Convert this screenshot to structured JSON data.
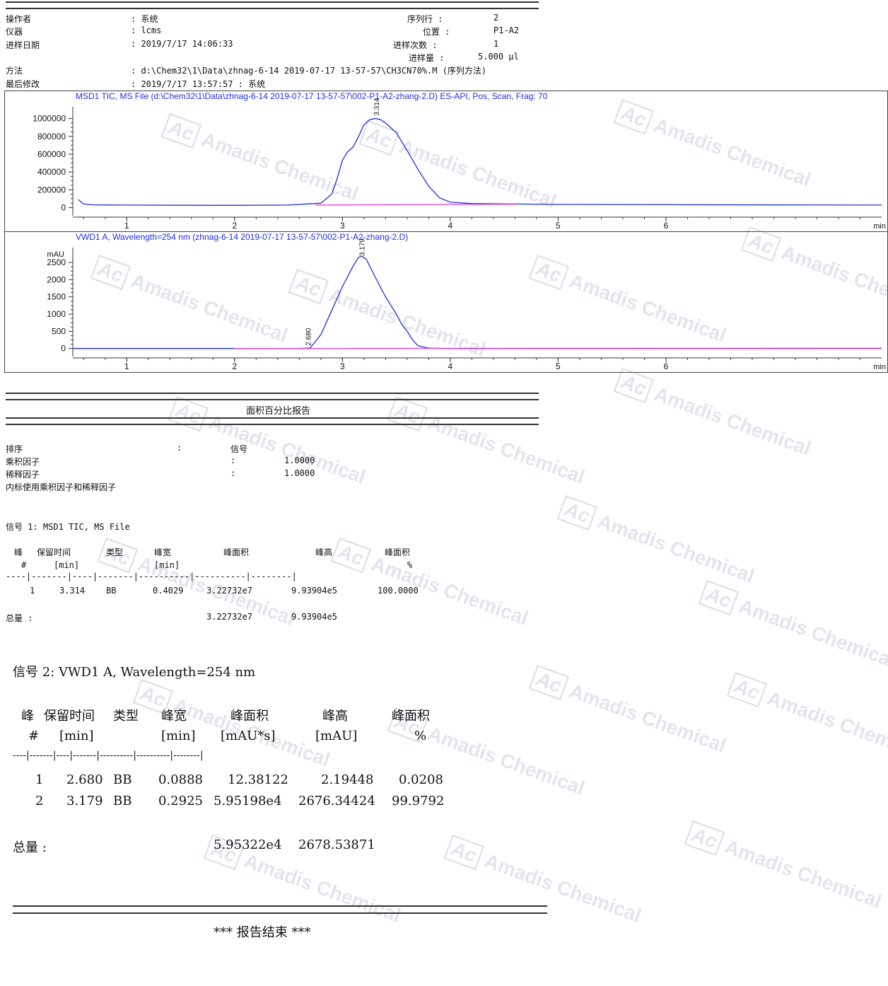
{
  "header": {
    "operator_label": "操作者",
    "operator_value": ": 系统",
    "instrument_label": "仪器",
    "instrument_value": ": lcms",
    "inj_date_label": "进样日期",
    "inj_date_value": ": 2019/7/17 14:06:33",
    "seq_line_label": "序列行 :",
    "seq_line_value": "2",
    "position_label": "位置 :",
    "position_value": "P1-A2",
    "inj_count_label": "进样次数 :",
    "inj_count_value": "1",
    "inj_vol_label": "进样量 :",
    "inj_vol_value": "5.000 µl",
    "method_label": "方法",
    "method_value": ": d:\\Chem32\\1\\Data\\zhnag-6-14 2019-07-17 13-57-57\\CH3CN70%.M (序列方法)",
    "last_mod_label": "最后修改",
    "last_mod_value": ": 2019/7/17 13:57:57 : 系统"
  },
  "chart_data": [
    {
      "type": "line",
      "title": "MSD1 TIC, MS File (d:\\Chem32\\1\\Data\\zhnag-6-14 2019-07-17 13-57-57\\002-P1-A2-zhang-2.D) ES-API, Pos, Scan, Frag: 70",
      "xlabel": "min",
      "ylabel": "",
      "xlim": [
        0.5,
        8.0
      ],
      "ylim": [
        -60000,
        1100000
      ],
      "xticks": [
        "1",
        "2",
        "3",
        "4",
        "5",
        "6"
      ],
      "yticks": [
        "0",
        "200000",
        "400000",
        "600000",
        "800000",
        "1000000"
      ],
      "ytick_values": [
        0,
        200000,
        400000,
        600000,
        800000,
        1000000
      ],
      "peak_labels": [
        {
          "text": "3.314",
          "x": 3.314,
          "y": 1000000
        }
      ],
      "series": [
        {
          "color": "#1f2fe0",
          "x": [
            0.55,
            0.6,
            0.7,
            1.0,
            1.5,
            2.0,
            2.5,
            2.8,
            2.9,
            2.95,
            3.0,
            3.05,
            3.1,
            3.15,
            3.2,
            3.25,
            3.3,
            3.35,
            3.4,
            3.5,
            3.6,
            3.7,
            3.8,
            3.9,
            4.0,
            4.2,
            4.6,
            5.0,
            6.0,
            7.0,
            8.0
          ],
          "y": [
            90000,
            40000,
            30000,
            28000,
            26000,
            25000,
            28000,
            50000,
            150000,
            320000,
            530000,
            630000,
            680000,
            800000,
            930000,
            985000,
            1000000,
            990000,
            950000,
            840000,
            640000,
            430000,
            240000,
            110000,
            60000,
            45000,
            40000,
            35000,
            32000,
            30000,
            28000
          ]
        },
        {
          "color": "#e03ad8",
          "x": [
            2.75,
            3.0,
            3.5,
            4.0,
            4.6
          ],
          "y": [
            28000,
            30000,
            32000,
            35000,
            38000
          ]
        }
      ]
    },
    {
      "type": "line",
      "title": "VWD1 A, Wavelength=254 nm (zhnag-6-14 2019-07-17 13-57-57\\002-P1-A2-zhang-2.D)",
      "xlabel": "min",
      "ylabel": "mAU",
      "xlim": [
        0.5,
        8.0
      ],
      "ylim": [
        -150,
        2850
      ],
      "xticks": [
        "1",
        "2",
        "3",
        "4",
        "5",
        "6"
      ],
      "yticks": [
        "0",
        "500",
        "1000",
        "1500",
        "2000",
        "2500"
      ],
      "ytick_values": [
        0,
        500,
        1000,
        1500,
        2000,
        2500
      ],
      "peak_labels": [
        {
          "text": "2.680",
          "x": 2.68,
          "y": 0
        },
        {
          "text": "3.179",
          "x": 3.179,
          "y": 2600
        }
      ],
      "series": [
        {
          "color": "#1f2fe0",
          "x": [
            0.5,
            1.0,
            2.0,
            2.6,
            2.7,
            2.8,
            2.9,
            3.0,
            3.1,
            3.15,
            3.18,
            3.22,
            3.3,
            3.4,
            3.5,
            3.55,
            3.6,
            3.65,
            3.7,
            3.8,
            4.0,
            5.0,
            6.0,
            8.0
          ],
          "y": [
            0,
            0,
            0,
            0,
            15,
            400,
            1100,
            1800,
            2400,
            2650,
            2680,
            2600,
            2100,
            1500,
            1000,
            700,
            500,
            250,
            80,
            10,
            0,
            0,
            0,
            0
          ]
        },
        {
          "color": "#e03ad8",
          "x": [
            2.0,
            3.0,
            4.0,
            6.0,
            8.0
          ],
          "y": [
            0,
            2,
            4,
            6,
            8
          ]
        }
      ]
    }
  ],
  "report": {
    "title": "面积百分比报告",
    "sort_label": "排序",
    "sort_colon": ":",
    "sort_value": "信号",
    "mult_label": "乘积因子",
    "mult_colon": ":",
    "mult_value": "1.0000",
    "dil_label": "稀释因子",
    "dil_colon": ":",
    "dil_value": "1.0000",
    "note": "内标使用乘积因子和稀释因子"
  },
  "signal1": {
    "title": "信号 1: MSD1 TIC, MS File",
    "headers1": [
      "峰",
      "保留时间",
      "类型",
      "峰宽",
      "峰面积",
      "峰高",
      "峰面积"
    ],
    "headers2": [
      "#",
      "[min]",
      "",
      "[min]",
      "",
      "",
      "%"
    ],
    "divider": "----|-------|----|-------|----------|----------|--------|",
    "rows": [
      [
        "1",
        "3.314",
        "BB",
        "0.4029",
        "3.22732e7",
        "9.93904e5",
        "100.0000"
      ]
    ],
    "total_label": "总量 :",
    "total_area": "3.22732e7",
    "total_height": "9.93904e5"
  },
  "signal2": {
    "title": "信号 2: VWD1 A, Wavelength=254 nm",
    "headers1": [
      "峰",
      "保留时间",
      "类型",
      "峰宽",
      "峰面积",
      "峰高",
      "峰面积"
    ],
    "headers2": [
      "#",
      "[min]",
      "",
      "[min]",
      "[mAU*s]",
      "[mAU]",
      "%"
    ],
    "divider": "----|-------|----|-------|----------|----------|--------|",
    "rows": [
      [
        "1",
        "2.680",
        "BB",
        "0.0888",
        "12.38122",
        "2.19448",
        "0.0208"
      ],
      [
        "2",
        "3.179",
        "BB",
        "0.2925",
        "5.95198e4",
        "2676.34424",
        "99.9792"
      ]
    ],
    "total_label": "总量 :",
    "total_area": "5.95322e4",
    "total_height": "2678.53871"
  },
  "footer": {
    "end_text": "*** 报告结束 ***"
  },
  "watermark": {
    "logo": "Ac",
    "text": "Amadis Chemical"
  }
}
